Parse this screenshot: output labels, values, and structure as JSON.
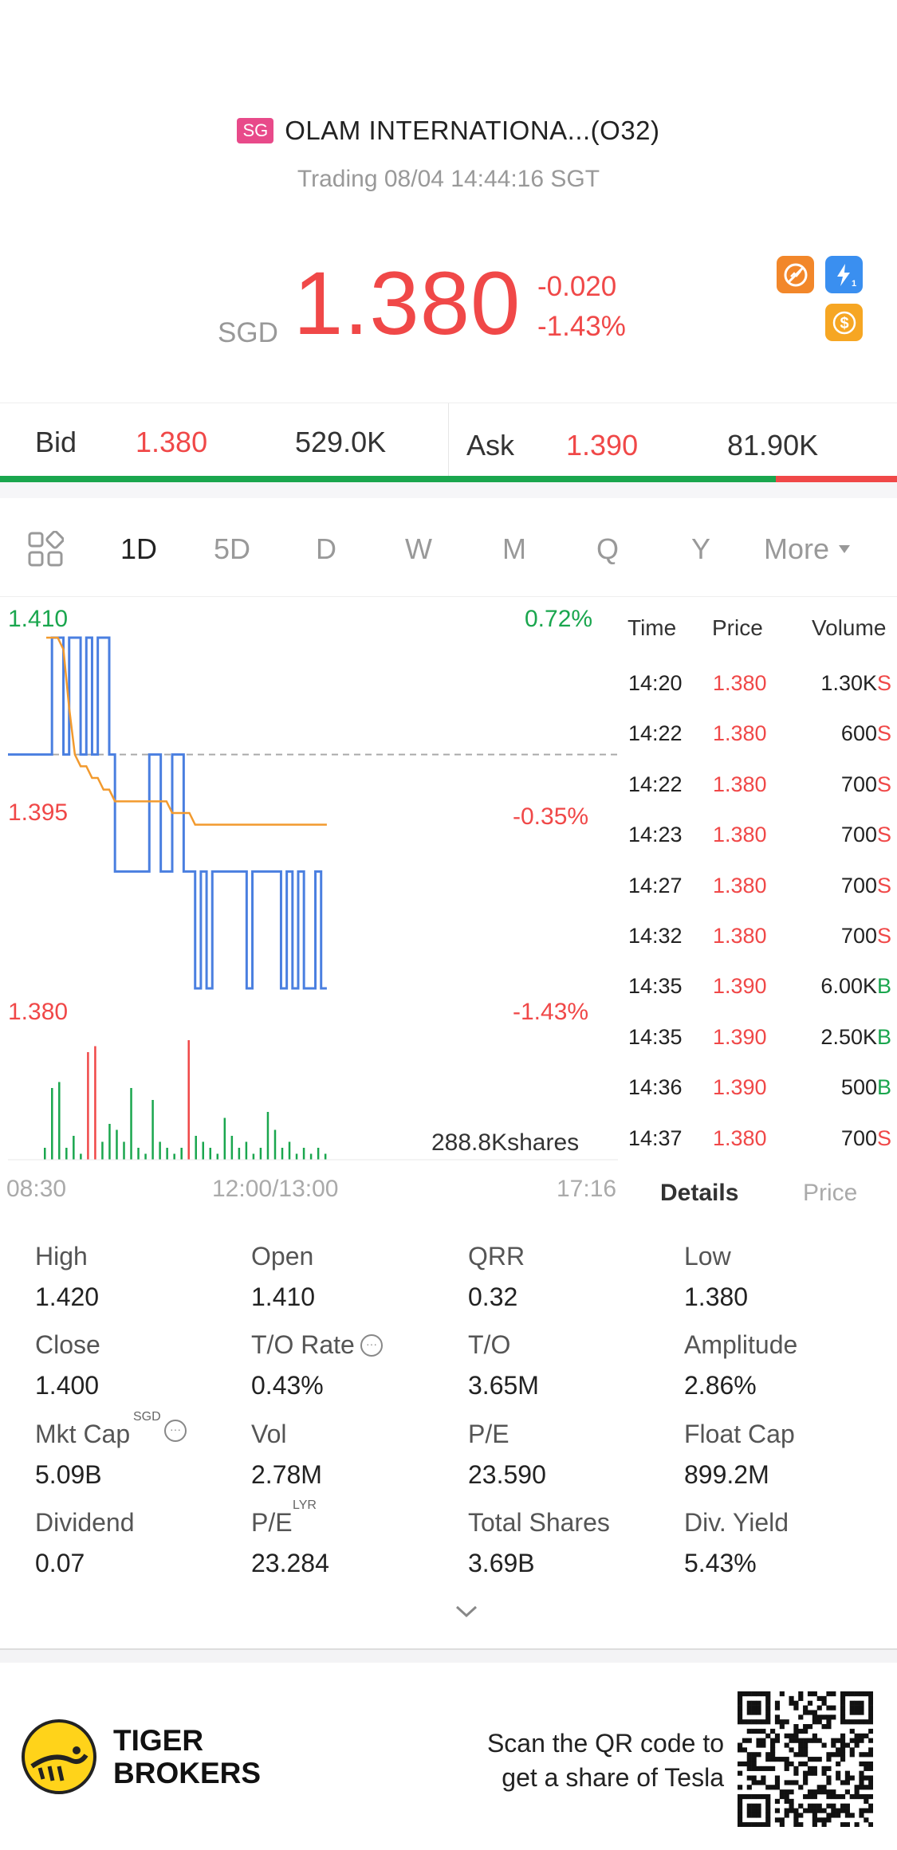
{
  "header": {
    "market_badge": "SG",
    "title": "OLAM INTERNATIONA...(O32)",
    "status": "Trading 08/04 14:44:16 SGT"
  },
  "quote": {
    "currency": "SGD",
    "price": "1.380",
    "change": "-0.020",
    "change_pct": "-1.43%",
    "icons": [
      "no-short-icon",
      "lightning-level1-icon",
      "dollar-icon"
    ],
    "colors": {
      "up": "#1aa64e",
      "down": "#f04848",
      "avg_line": "#f29a2e",
      "price_line": "#4a7fe0"
    }
  },
  "bid_ask": {
    "bid_label": "Bid",
    "bid_price": "1.380",
    "bid_size": "529.0K",
    "ask_label": "Ask",
    "ask_price": "1.390",
    "ask_size": "81.90K",
    "bid_ratio": 0.865
  },
  "tabs": {
    "layout_icon": "grid-icon",
    "items": [
      "1D",
      "5D",
      "D",
      "W",
      "M",
      "Q",
      "Y",
      "More"
    ],
    "active": "1D"
  },
  "chart_data": {
    "type": "line",
    "y_labels_left": [
      "1.410",
      "1.395",
      "1.380"
    ],
    "y_labels_right": [
      "0.72%",
      "-0.35%",
      "-1.43%"
    ],
    "x_ticks": [
      "08:30",
      "12:00/13:00",
      "17:16"
    ],
    "ylim": [
      1.38,
      1.41
    ],
    "reference_close": 1.4,
    "volume_label": "288.8Kshares",
    "series": [
      {
        "name": "",
        "values": [
          1.4,
          1.41,
          1.41,
          1.4,
          1.41,
          1.41,
          1.4,
          1.41,
          1.4,
          1.41,
          1.41,
          1.4,
          1.39,
          1.39,
          1.39,
          1.39,
          1.39,
          1.39,
          1.4,
          1.4,
          1.39,
          1.39,
          1.4,
          1.4,
          1.39,
          1.39,
          1.38,
          1.39,
          1.38,
          1.39,
          1.39,
          1.39,
          1.39,
          1.39,
          1.39,
          1.38,
          1.39,
          1.39,
          1.39,
          1.39,
          1.39,
          1.38,
          1.39,
          1.38,
          1.39,
          1.38,
          1.38,
          1.39,
          1.38,
          1.38
        ]
      },
      {
        "name": "",
        "values": [
          1.41,
          1.41,
          1.41,
          1.409,
          1.404,
          1.4,
          1.399,
          1.399,
          1.398,
          1.398,
          1.397,
          1.397,
          1.396,
          1.396,
          1.396,
          1.396,
          1.396,
          1.396,
          1.396,
          1.396,
          1.396,
          1.396,
          1.395,
          1.395,
          1.395,
          1.395,
          1.394,
          1.394,
          1.394,
          1.394,
          1.394,
          1.394,
          1.394,
          1.394,
          1.394,
          1.394,
          1.394,
          1.394,
          1.394,
          1.394,
          1.394,
          1.394,
          1.394,
          1.394,
          1.394,
          1.394,
          1.394,
          1.394,
          1.394,
          1.394
        ]
      }
    ],
    "volume_bars": [
      0.1,
      0.6,
      0.65,
      0.1,
      0.2,
      0.05,
      0.9,
      0.95,
      0.15,
      0.3,
      0.25,
      0.15,
      0.6,
      0.1,
      0.05,
      0.5,
      0.15,
      0.1,
      0.05,
      0.1,
      1.0,
      0.2,
      0.15,
      0.1,
      0.05,
      0.35,
      0.2,
      0.1,
      0.15,
      0.05,
      0.1,
      0.4,
      0.25,
      0.1,
      0.15,
      0.05,
      0.1,
      0.05,
      0.1,
      0.05
    ],
    "volume_bar_colors": [
      "g",
      "g",
      "g",
      "g",
      "g",
      "g",
      "r",
      "r",
      "g",
      "g",
      "g",
      "g",
      "g",
      "g",
      "g",
      "g",
      "g",
      "g",
      "g",
      "g",
      "r",
      "g",
      "g",
      "g",
      "g",
      "g",
      "g",
      "g",
      "g",
      "g",
      "g",
      "g",
      "g",
      "g",
      "g",
      "g",
      "g",
      "g",
      "g",
      "g"
    ]
  },
  "ticks": {
    "headers": [
      "Time",
      "Price",
      "Volume"
    ],
    "rows": [
      {
        "time": "14:20",
        "price": "1.380",
        "volume": "1.30K",
        "side": "S"
      },
      {
        "time": "14:22",
        "price": "1.380",
        "volume": "600",
        "side": "S"
      },
      {
        "time": "14:22",
        "price": "1.380",
        "volume": "700",
        "side": "S"
      },
      {
        "time": "14:23",
        "price": "1.380",
        "volume": "700",
        "side": "S"
      },
      {
        "time": "14:27",
        "price": "1.380",
        "volume": "700",
        "side": "S"
      },
      {
        "time": "14:32",
        "price": "1.380",
        "volume": "700",
        "side": "S"
      },
      {
        "time": "14:35",
        "price": "1.390",
        "volume": "6.00K",
        "side": "B"
      },
      {
        "time": "14:35",
        "price": "1.390",
        "volume": "2.50K",
        "side": "B"
      },
      {
        "time": "14:36",
        "price": "1.390",
        "volume": "500",
        "side": "B"
      },
      {
        "time": "14:37",
        "price": "1.380",
        "volume": "700",
        "side": "S"
      }
    ],
    "tabs": [
      "Details",
      "Price"
    ],
    "active_tab": "Details"
  },
  "stats": [
    {
      "label": "High",
      "value": "1.420"
    },
    {
      "label": "Open",
      "value": "1.410"
    },
    {
      "label": "QRR",
      "value": "0.32"
    },
    {
      "label": "Low",
      "value": "1.380"
    },
    {
      "label": "Close",
      "value": "1.400"
    },
    {
      "label": "T/O Rate",
      "value": "0.43%"
    },
    {
      "label": "T/O",
      "value": "3.65M"
    },
    {
      "label": "Amplitude",
      "value": "2.86%"
    },
    {
      "label": "Mkt Cap",
      "value": "5.09B",
      "sup": "SGD"
    },
    {
      "label": "Vol",
      "value": "2.78M"
    },
    {
      "label": "P/E",
      "value": "23.590"
    },
    {
      "label": "Float Cap",
      "value": "899.2M"
    },
    {
      "label": "Dividend",
      "value": "0.07"
    },
    {
      "label": "P/E",
      "value": "23.284",
      "sup": "LYR"
    },
    {
      "label": "Total Shares",
      "value": "3.69B"
    },
    {
      "label": "Div. Yield",
      "value": "5.43%"
    }
  ],
  "footer": {
    "brand_line1": "TIGER",
    "brand_line2": "BROKERS",
    "promo_line1": "Scan the QR code to",
    "promo_line2": "get a share of Tesla"
  }
}
